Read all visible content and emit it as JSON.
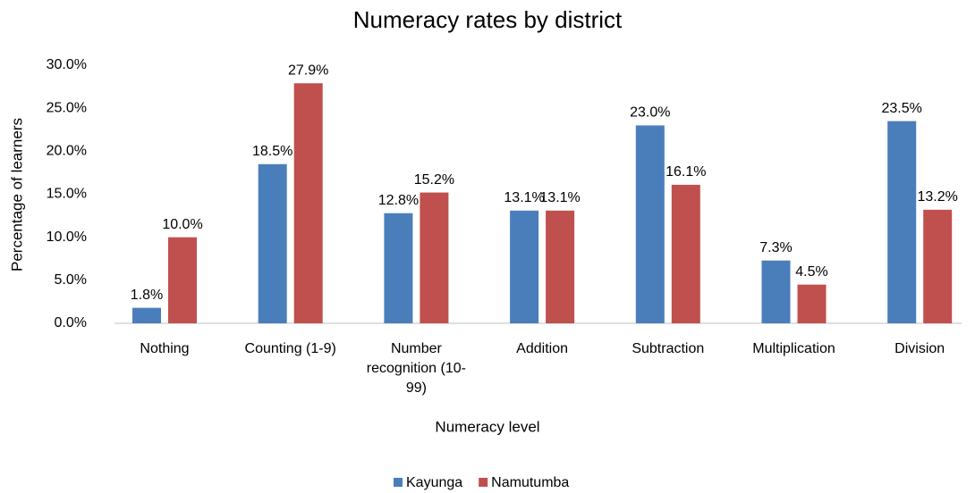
{
  "chart_data": {
    "type": "bar",
    "title": "Numeracy rates by district",
    "x_label": "Numeracy level",
    "y_label": "Percentage of learners",
    "categories": [
      "Nothing",
      "Counting (1-9)",
      "Number recognition (10-99)",
      "Addition",
      "Subtraction",
      "Multiplication",
      "Division"
    ],
    "series": [
      {
        "name": "Kayunga",
        "color": "#4a7ebb",
        "values": [
          1.8,
          18.5,
          12.8,
          13.1,
          23.0,
          7.3,
          23.5
        ],
        "value_labels": [
          "1.8%",
          "18.5%",
          "12.8%",
          "13.1%",
          "23.0%",
          "7.3%",
          "23.5%"
        ]
      },
      {
        "name": "Namutumba",
        "color": "#c0504d",
        "values": [
          10.0,
          27.9,
          15.2,
          13.1,
          16.1,
          4.5,
          13.2
        ],
        "value_labels": [
          "10.0%",
          "27.9%",
          "15.2%",
          "13.1%",
          "16.1%",
          "4.5%",
          "13.2%"
        ]
      }
    ],
    "ylim": [
      0,
      30
    ],
    "yticks": [
      {
        "value": 0,
        "label": "0.0%"
      },
      {
        "value": 5,
        "label": "5.0%"
      },
      {
        "value": 10,
        "label": "10.0%"
      },
      {
        "value": 15,
        "label": "15.0%"
      },
      {
        "value": 20,
        "label": "20.0%"
      },
      {
        "value": 25,
        "label": "25.0%"
      },
      {
        "value": 30,
        "label": "30.0%"
      }
    ],
    "grid": false,
    "legend": "bottom"
  }
}
